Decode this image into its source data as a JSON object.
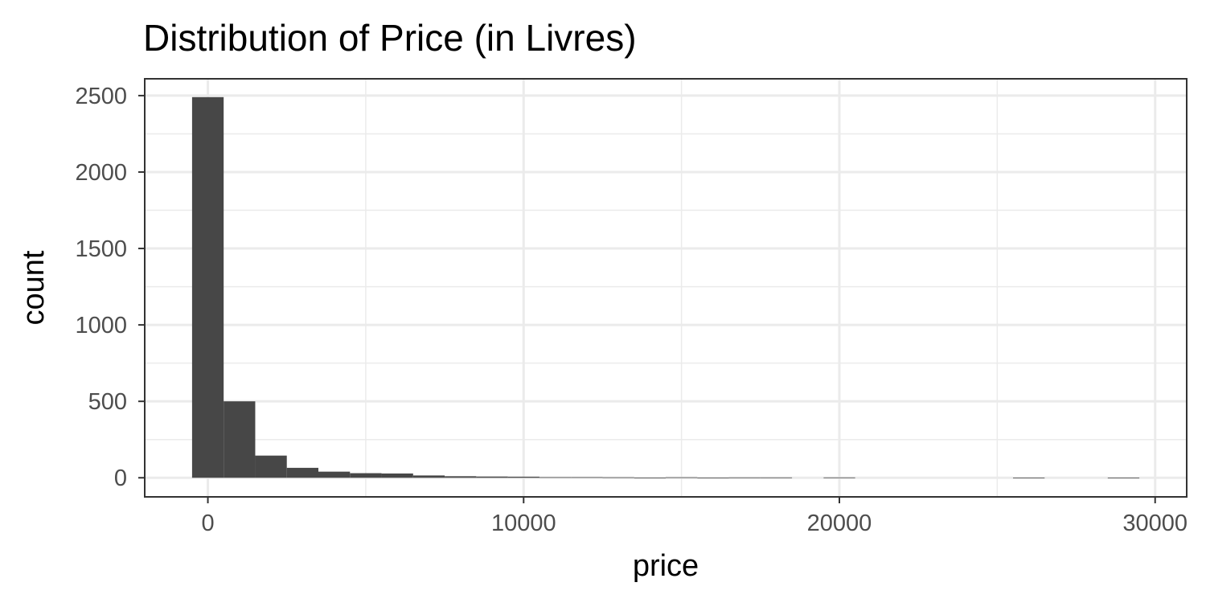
{
  "chart_data": {
    "type": "bar",
    "title": "Distribution of Price (in Livres)",
    "xlabel": "price",
    "ylabel": "count",
    "xlim": [
      -2000,
      31000
    ],
    "ylim": [
      -125,
      2610
    ],
    "x_ticks": [
      0,
      10000,
      20000,
      30000
    ],
    "x_tick_labels": [
      "0",
      "10000",
      "20000",
      "30000"
    ],
    "y_ticks": [
      0,
      500,
      1000,
      1500,
      2000,
      2500
    ],
    "y_tick_labels": [
      "0",
      "500",
      "1000",
      "1500",
      "2000",
      "2500"
    ],
    "bin_width": 1000,
    "bins": [
      {
        "x_start": -500,
        "x_end": 500,
        "count": 2490
      },
      {
        "x_start": 500,
        "x_end": 1500,
        "count": 500
      },
      {
        "x_start": 1500,
        "x_end": 2500,
        "count": 145
      },
      {
        "x_start": 2500,
        "x_end": 3500,
        "count": 65
      },
      {
        "x_start": 3500,
        "x_end": 4500,
        "count": 40
      },
      {
        "x_start": 4500,
        "x_end": 5500,
        "count": 30
      },
      {
        "x_start": 5500,
        "x_end": 6500,
        "count": 28
      },
      {
        "x_start": 6500,
        "x_end": 7500,
        "count": 15
      },
      {
        "x_start": 7500,
        "x_end": 8500,
        "count": 10
      },
      {
        "x_start": 8500,
        "x_end": 9500,
        "count": 8
      },
      {
        "x_start": 9500,
        "x_end": 10500,
        "count": 7
      },
      {
        "x_start": 10500,
        "x_end": 11500,
        "count": 4
      },
      {
        "x_start": 11500,
        "x_end": 12500,
        "count": 4
      },
      {
        "x_start": 12500,
        "x_end": 13500,
        "count": 3
      },
      {
        "x_start": 13500,
        "x_end": 14500,
        "count": 1
      },
      {
        "x_start": 14500,
        "x_end": 15500,
        "count": 3
      },
      {
        "x_start": 15500,
        "x_end": 16500,
        "count": 1
      },
      {
        "x_start": 16500,
        "x_end": 17500,
        "count": 2
      },
      {
        "x_start": 17500,
        "x_end": 18500,
        "count": 2
      },
      {
        "x_start": 18500,
        "x_end": 19500,
        "count": 0
      },
      {
        "x_start": 19500,
        "x_end": 20500,
        "count": 2
      },
      {
        "x_start": 20500,
        "x_end": 21500,
        "count": 0
      },
      {
        "x_start": 21500,
        "x_end": 22500,
        "count": 0
      },
      {
        "x_start": 22500,
        "x_end": 23500,
        "count": 0
      },
      {
        "x_start": 23500,
        "x_end": 24500,
        "count": 0
      },
      {
        "x_start": 24500,
        "x_end": 25500,
        "count": 0
      },
      {
        "x_start": 25500,
        "x_end": 26500,
        "count": 1
      },
      {
        "x_start": 26500,
        "x_end": 27500,
        "count": 0
      },
      {
        "x_start": 27500,
        "x_end": 28500,
        "count": 0
      },
      {
        "x_start": 28500,
        "x_end": 29500,
        "count": 1
      }
    ],
    "grid": true,
    "panel_border": true,
    "bar_color": "#474747",
    "grid_color": "#ebebeb",
    "border_color": "#333333",
    "background_color": "#ffffff"
  }
}
